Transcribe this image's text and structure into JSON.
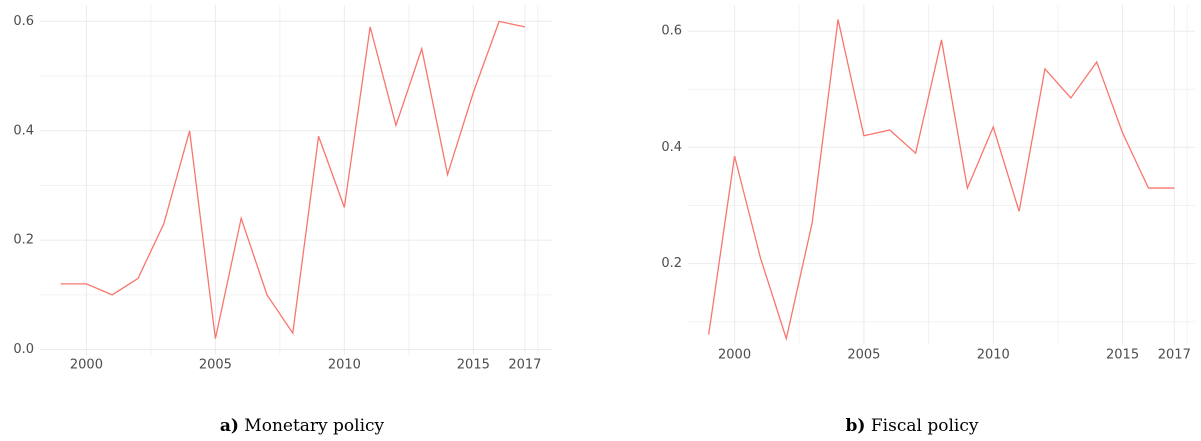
{
  "chart_data": [
    {
      "type": "line",
      "caption_label": "a)",
      "caption": "Monetary policy",
      "x": [
        1999,
        2000,
        2001,
        2002,
        2003,
        2004,
        2005,
        2006,
        2007,
        2008,
        2009,
        2010,
        2011,
        2012,
        2013,
        2014,
        2015,
        2016,
        2017
      ],
      "series": [
        {
          "color": "#F8766D",
          "values": [
            0.12,
            0.12,
            0.1,
            0.13,
            0.23,
            0.4,
            0.02,
            0.24,
            0.1,
            0.03,
            0.39,
            0.26,
            0.59,
            0.41,
            0.55,
            0.32,
            0.47,
            0.6,
            0.59
          ]
        }
      ],
      "xlim": [
        1998.2,
        2018.05
      ],
      "xticks": [
        2000,
        2005,
        2010,
        2015,
        2017
      ],
      "minor_xticks": [
        2002.5,
        2007.5,
        2012.5,
        2017.5
      ],
      "ylim": [
        -0.01,
        0.63
      ],
      "yticks": [
        {
          "value": 0,
          "label": "0.0"
        },
        0.2,
        0.4,
        0.6
      ],
      "minor_yticks": [
        0.1,
        0.3,
        0.5
      ],
      "grid": true
    },
    {
      "type": "line",
      "caption_label": "b)",
      "caption": "Fiscal policy",
      "x": [
        1999,
        2000,
        2001,
        2002,
        2003,
        2004,
        2005,
        2006,
        2007,
        2008,
        2009,
        2010,
        2011,
        2012,
        2013,
        2014,
        2015,
        2016,
        2017
      ],
      "series": [
        {
          "color": "#F8766D",
          "values": [
            0.078,
            0.385,
            0.21,
            0.071,
            0.27,
            0.62,
            0.42,
            0.43,
            0.39,
            0.585,
            0.33,
            0.435,
            0.29,
            0.535,
            0.485,
            0.547,
            0.425,
            0.33,
            0.33
          ]
        }
      ],
      "xlim": [
        1998.2,
        2017.8
      ],
      "xticks": [
        2000,
        2005,
        2010,
        2015,
        2017
      ],
      "minor_xticks": [
        2002.5,
        2007.5,
        2012.5,
        2017.5
      ],
      "ylim": [
        0.06,
        0.645
      ],
      "yticks": [
        0.2,
        0.4,
        0.6
      ],
      "minor_yticks": [
        0.1,
        0.3,
        0.5
      ],
      "grid": true
    }
  ]
}
